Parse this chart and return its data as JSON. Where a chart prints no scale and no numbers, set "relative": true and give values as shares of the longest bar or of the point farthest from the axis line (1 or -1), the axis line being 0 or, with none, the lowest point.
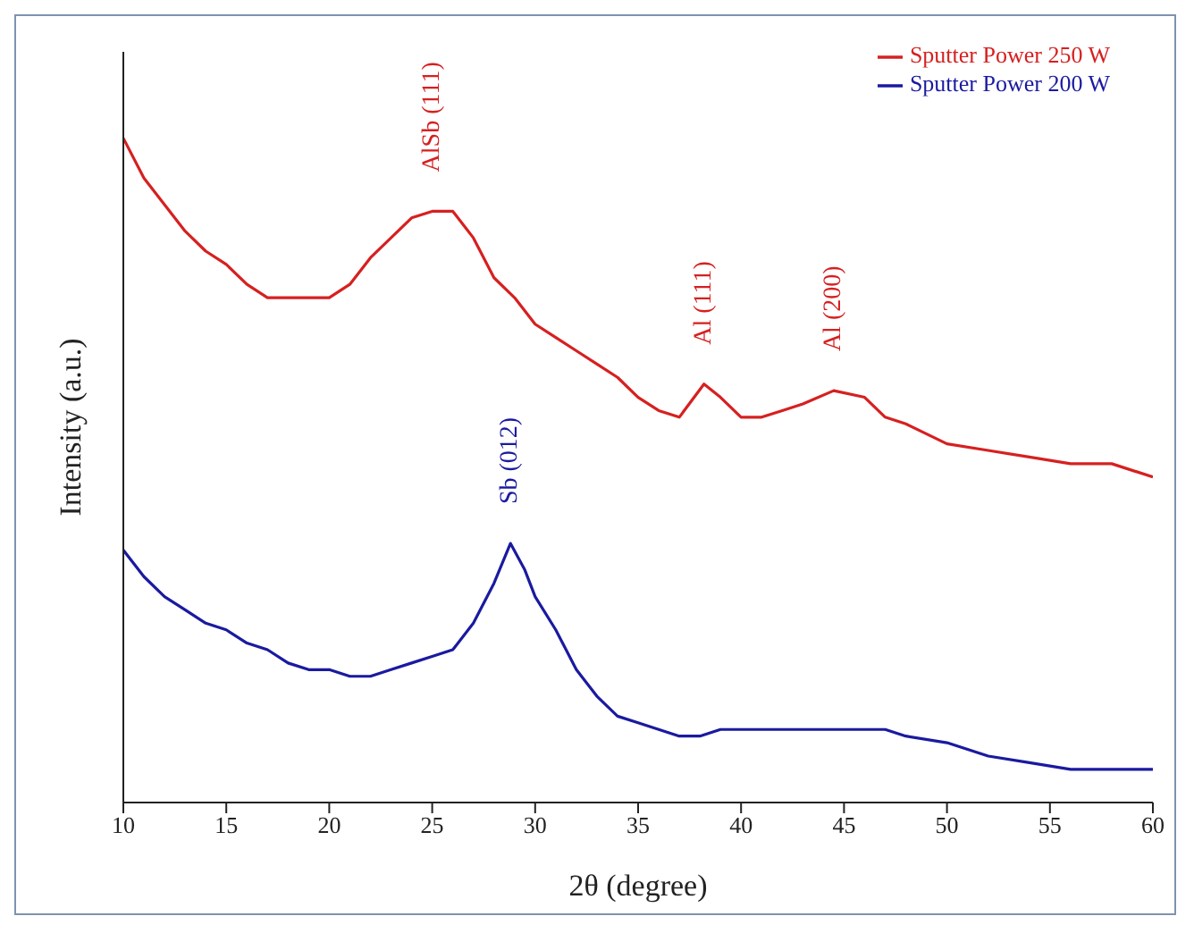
{
  "chart_data": {
    "type": "line",
    "relative": true,
    "xlabel": "2θ (degree)",
    "ylabel": "Intensity (a.u.)",
    "xlim": [
      10,
      60
    ],
    "xticks": [
      10,
      15,
      20,
      25,
      30,
      35,
      40,
      45,
      50,
      55,
      60
    ],
    "tick_labels": "x",
    "legend": "top right",
    "grid": false,
    "series": [
      {
        "name": "Sputter Power 250 W",
        "color": "#d62020",
        "x": [
          10,
          11,
          12,
          13,
          14,
          15,
          16,
          17,
          18,
          19,
          20,
          21,
          22,
          23,
          24,
          25,
          26,
          27,
          28,
          29,
          30,
          31,
          32,
          33,
          34,
          35,
          36,
          37,
          38.2,
          39,
          40,
          41,
          42,
          43,
          44.5,
          46,
          47,
          48,
          50,
          52,
          54,
          56,
          58,
          60
        ],
        "values": [
          1.0,
          0.94,
          0.9,
          0.86,
          0.83,
          0.81,
          0.78,
          0.76,
          0.76,
          0.76,
          0.76,
          0.78,
          0.82,
          0.85,
          0.88,
          0.89,
          0.89,
          0.85,
          0.79,
          0.76,
          0.72,
          0.7,
          0.68,
          0.66,
          0.64,
          0.61,
          0.59,
          0.58,
          0.63,
          0.61,
          0.58,
          0.58,
          0.59,
          0.6,
          0.62,
          0.61,
          0.58,
          0.57,
          0.54,
          0.53,
          0.52,
          0.51,
          0.51,
          0.49
        ]
      },
      {
        "name": "Sputter Power 200 W",
        "color": "#1a1aa0",
        "x": [
          10,
          11,
          12,
          13,
          14,
          15,
          16,
          17,
          18,
          19,
          20,
          21,
          22,
          23,
          24,
          25,
          26,
          27,
          28,
          28.8,
          29.5,
          30,
          31,
          32,
          33,
          34,
          35,
          36,
          37,
          38,
          39,
          40,
          42,
          44,
          46,
          47,
          48,
          50,
          52,
          54,
          56,
          58,
          60
        ],
        "values": [
          0.38,
          0.34,
          0.31,
          0.29,
          0.27,
          0.26,
          0.24,
          0.23,
          0.21,
          0.2,
          0.2,
          0.19,
          0.19,
          0.2,
          0.21,
          0.22,
          0.23,
          0.27,
          0.33,
          0.39,
          0.35,
          0.31,
          0.26,
          0.2,
          0.16,
          0.13,
          0.12,
          0.11,
          0.1,
          0.1,
          0.11,
          0.11,
          0.11,
          0.11,
          0.11,
          0.11,
          0.1,
          0.09,
          0.07,
          0.06,
          0.05,
          0.05,
          0.05
        ]
      }
    ],
    "annotations": [
      {
        "text": "AlSb (111)",
        "x": 25,
        "y": 0.89
      },
      {
        "text": "Al (111)",
        "x": 38.2,
        "y": 0.63
      },
      {
        "text": "Al (200)",
        "x": 44.5,
        "y": 0.62
      },
      {
        "text": "Sb (012)",
        "x": 28.8,
        "y": 0.39
      }
    ]
  }
}
